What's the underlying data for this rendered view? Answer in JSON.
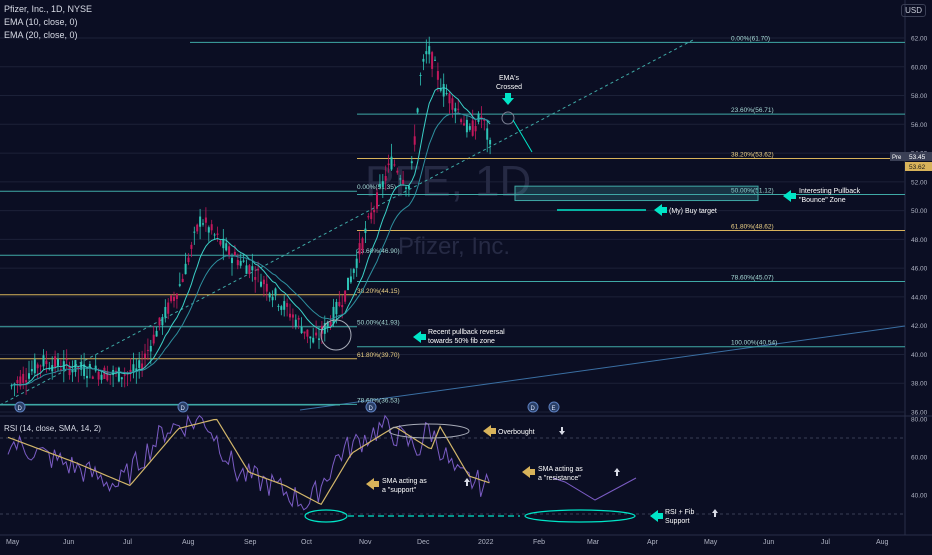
{
  "header": {
    "symbol_line": "Pfizer, Inc., 1D, NYSE",
    "indicator_1": "EMA (10, close, 0)",
    "indicator_2": "EMA (20, close, 0)",
    "currency": "USD",
    "rsi_label": "RSI (14, close, SMA, 14, 2)"
  },
  "watermark": {
    "ticker": "PFE, 1D",
    "name": "Pfizer, Inc."
  },
  "colors": {
    "background": "#0b0e23",
    "grid": "#1c2138",
    "fib_gold": "#d8b35a",
    "fib_teal": "#3fa9a6",
    "ema_fast": "#3bd0c7",
    "ema_slow": "#2e8f9e",
    "candle_up": "#2ec4b6",
    "candle_down": "#c2185b",
    "rsi": "#7b5cc4",
    "rsi_sma": "#d2b66a",
    "annotation": "#00e5c7",
    "annotation_gold": "#d8b35a"
  },
  "price_axis": [
    "62.00",
    "60.00",
    "58.00",
    "56.00",
    "54.00",
    "52.00",
    "50.00",
    "48.00",
    "46.00",
    "44.00",
    "42.00",
    "40.00",
    "38.00",
    "36.00"
  ],
  "price_tags": {
    "pre_label": "Pre",
    "pre_value": "53.45",
    "last_value": "53.62"
  },
  "rsi_axis": [
    "80.00",
    "60.00",
    "40.00"
  ],
  "time_axis": [
    "May",
    "Jun",
    "Jul",
    "Aug",
    "Sep",
    "Oct",
    "Nov",
    "Dec",
    "2022",
    "Feb",
    "Mar",
    "Apr",
    "May",
    "Jun",
    "Jul",
    "Aug"
  ],
  "fib_upper": {
    "levels": [
      {
        "label": "0.00%(61.70)",
        "price": 61.7,
        "color": "teal"
      },
      {
        "label": "23.60%(56.71)",
        "price": 56.71,
        "color": "teal"
      },
      {
        "label": "38.20%(53.62)",
        "price": 53.62,
        "color": "gold"
      },
      {
        "label": "50.00%(51.12)",
        "price": 51.12,
        "color": "teal"
      },
      {
        "label": "61.80%(48.62)",
        "price": 48.62,
        "color": "gold"
      },
      {
        "label": "78.60%(45.07)",
        "price": 45.07,
        "color": "teal"
      },
      {
        "label": "100.00%(40.54)",
        "price": 40.54,
        "color": "teal"
      }
    ]
  },
  "fib_lower": {
    "levels": [
      {
        "label": "0.00%(51.35)",
        "price": 51.35,
        "color": "teal"
      },
      {
        "label": "23.60%(46.90)",
        "price": 46.9,
        "color": "teal"
      },
      {
        "label": "38.20%(44.15)",
        "price": 44.15,
        "color": "gold"
      },
      {
        "label": "50.00%(41.93)",
        "price": 41.93,
        "color": "teal"
      },
      {
        "label": "61.80%(39.70)",
        "price": 39.7,
        "color": "gold"
      },
      {
        "label": "78.60%(36.53)",
        "price": 36.53,
        "color": "teal"
      }
    ]
  },
  "annotations": {
    "ema_crossed": "EMA's Crossed",
    "pullback_zone": "Interesting Pullback \"Bounce\" Zone",
    "buy_target": "(My) Buy target",
    "pullback_reversal": "Recent pullback reversal towards 50% fib zone",
    "overbought": "Overbought",
    "sma_support": "SMA acting as a \"support\"",
    "sma_resistance": "SMA acting as a \"resistance\"",
    "rsi_fib_support": "RSI + Fib Support"
  },
  "chart_data": {
    "type": "candlestick",
    "title": "Pfizer, Inc., 1D, NYSE",
    "x_range": [
      "2021-05-01",
      "2022-08-31"
    ],
    "ylim": [
      36,
      62.5
    ],
    "grid": false,
    "price_path": [
      {
        "date": "2021-05-03",
        "close": 37.8
      },
      {
        "date": "2021-05-20",
        "close": 39.5
      },
      {
        "date": "2021-06-10",
        "close": 39.0
      },
      {
        "date": "2021-06-30",
        "close": 38.6
      },
      {
        "date": "2021-07-12",
        "close": 38.8
      },
      {
        "date": "2021-07-22",
        "close": 41.5
      },
      {
        "date": "2021-08-05",
        "close": 45.0
      },
      {
        "date": "2021-08-16",
        "close": 49.5
      },
      {
        "date": "2021-08-20",
        "close": 48.8
      },
      {
        "date": "2021-09-01",
        "close": 47.0
      },
      {
        "date": "2021-09-15",
        "close": 45.8
      },
      {
        "date": "2021-09-30",
        "close": 43.5
      },
      {
        "date": "2021-10-12",
        "close": 41.8
      },
      {
        "date": "2021-10-18",
        "close": 40.8
      },
      {
        "date": "2021-10-28",
        "close": 42.6
      },
      {
        "date": "2021-11-05",
        "close": 44.5
      },
      {
        "date": "2021-11-18",
        "close": 49.5
      },
      {
        "date": "2021-11-30",
        "close": 53.5
      },
      {
        "date": "2021-12-10",
        "close": 51.6
      },
      {
        "date": "2021-12-16",
        "close": 59.5
      },
      {
        "date": "2021-12-20",
        "close": 61.2
      },
      {
        "date": "2021-12-28",
        "close": 58.5
      },
      {
        "date": "2022-01-05",
        "close": 57.2
      },
      {
        "date": "2022-01-12",
        "close": 55.4
      },
      {
        "date": "2022-01-19",
        "close": 56.6
      },
      {
        "date": "2022-01-25",
        "close": 53.6
      }
    ],
    "rsi_path": [
      {
        "date": "2021-05-01",
        "rsi": 68
      },
      {
        "date": "2021-06-01",
        "rsi": 57
      },
      {
        "date": "2021-07-01",
        "rsi": 45
      },
      {
        "date": "2021-07-28",
        "rsi": 75
      },
      {
        "date": "2021-08-18",
        "rsi": 80
      },
      {
        "date": "2021-09-05",
        "rsi": 52
      },
      {
        "date": "2021-09-25",
        "rsi": 45
      },
      {
        "date": "2021-10-15",
        "rsi": 35
      },
      {
        "date": "2021-11-01",
        "rsi": 62
      },
      {
        "date": "2021-11-25",
        "rsi": 76
      },
      {
        "date": "2021-12-15",
        "rsi": 64
      },
      {
        "date": "2021-12-20",
        "rsi": 76
      },
      {
        "date": "2022-01-05",
        "rsi": 50
      },
      {
        "date": "2022-01-24",
        "rsi": 44
      }
    ],
    "series": [
      {
        "name": "EMA (10, close, 0)",
        "color": "#3bd0c7"
      },
      {
        "name": "EMA (20, close, 0)",
        "color": "#2e8f9e"
      },
      {
        "name": "RSI (14, close, SMA, 14, 2)",
        "color": "#7b5cc4"
      }
    ]
  }
}
